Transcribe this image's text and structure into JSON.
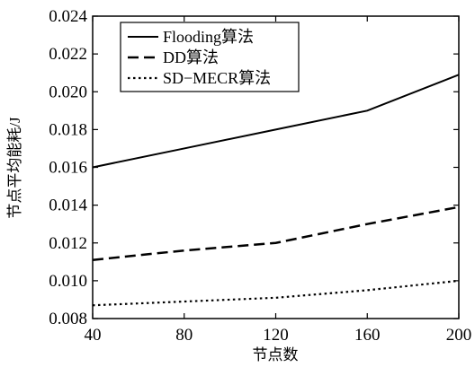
{
  "chart_data": {
    "type": "line",
    "xlabel": "节点数",
    "ylabel": "节点平均能耗/J",
    "x": [
      40,
      80,
      120,
      160,
      200
    ],
    "xlim": [
      40,
      200
    ],
    "ylim": [
      0.008,
      0.024
    ],
    "x_ticks": [
      "40",
      "80",
      "120",
      "160",
      "200"
    ],
    "y_ticks": [
      "0.008",
      "0.010",
      "0.012",
      "0.014",
      "0.016",
      "0.018",
      "0.020",
      "0.022",
      "0.024"
    ],
    "grid": false,
    "legend_position": "top-left",
    "series": [
      {
        "name": "Flooding算法",
        "style": "solid",
        "values": [
          0.016,
          0.017,
          0.018,
          0.019,
          0.0209
        ]
      },
      {
        "name": "DD算法",
        "style": "dashed",
        "values": [
          0.0111,
          0.0116,
          0.012,
          0.013,
          0.0139
        ]
      },
      {
        "name": "SD−MECR算法",
        "style": "dotted",
        "values": [
          0.0087,
          0.0089,
          0.0091,
          0.0095,
          0.01
        ]
      }
    ],
    "colors": {
      "line": "#000000",
      "background": "#ffffff"
    }
  }
}
